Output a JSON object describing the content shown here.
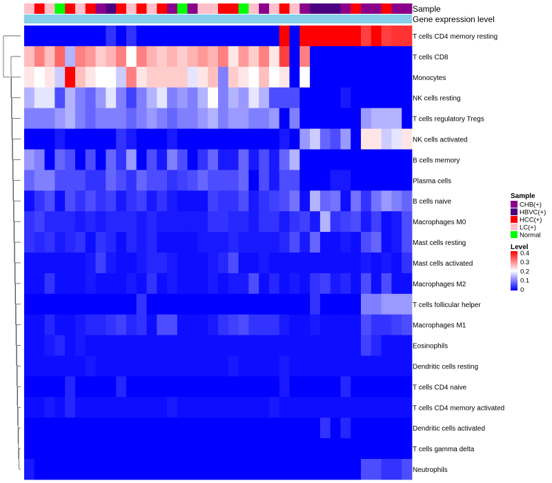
{
  "chart_data": {
    "type": "heatmap",
    "annotation_labels": {
      "sample": "Sample",
      "gene_expression": "Gene expression level"
    },
    "sample_groups": [
      "LC(+)",
      "HCC(+)",
      "LC(+)",
      "Normal",
      "HCC(+)",
      "LC(+)",
      "HCC(+)",
      "CHB(+)",
      "HBVC(+)",
      "HCC(+)",
      "LC(+)",
      "HCC(+)",
      "LC(+)",
      "HCC(+)",
      "CHB(+)",
      "Normal",
      "CHB(+)",
      "LC(+)",
      "LC(+)",
      "HCC(+)",
      "HCC(+)",
      "Normal",
      "LC(+)",
      "CHB(+)",
      "LC(+)",
      "HCC(+)",
      "LC(+)",
      "CHB(+)",
      "HBVC(+)",
      "HBVC(+)",
      "HBVC(+)",
      "CHB(+)",
      "HCC(+)",
      "CHB(+)",
      "CHB(+)",
      "HCC(+)",
      "CHB(+)",
      "CHB(+)"
    ],
    "rows": [
      "T cells CD4 memory resting",
      "T cells CD8",
      "Monocytes",
      "NK cells resting",
      "T cells regulatory  Tregs",
      "NK cells activated",
      "B cells memory",
      "Plasma cells",
      "B cells naive",
      "Macrophages M0",
      "Mast cells resting",
      "Mast cells activated",
      "Macrophages M2",
      "T cells follicular helper",
      "Macrophages M1",
      "Eosinophils",
      "Dendritic cells resting",
      "T cells CD4 naive",
      "T cells CD4 memory activated",
      "Dendritic cells activated",
      "T cells gamma delta",
      "Neutrophils"
    ],
    "values": [
      [
        0,
        0,
        0,
        0,
        0,
        0,
        0,
        0,
        0.04,
        0,
        0.04,
        0,
        0,
        0,
        0,
        0,
        0,
        0,
        0,
        0,
        0,
        0,
        0,
        0,
        0,
        0.4,
        0,
        0.4,
        0.4,
        0.4,
        0.4,
        0.4,
        0.4,
        0.35,
        0.4,
        0.35,
        0.36,
        0.36
      ],
      [
        0.25,
        0.3,
        0.25,
        0.32,
        0.14,
        0.3,
        0.28,
        0.24,
        0.26,
        0.3,
        0.2,
        0.3,
        0.26,
        0.24,
        0.26,
        0.24,
        0.26,
        0.28,
        0.26,
        0.3,
        0.22,
        0.28,
        0.24,
        0.3,
        0.22,
        0.35,
        0,
        0.3,
        0,
        0,
        0,
        0,
        0,
        0,
        0,
        0,
        0,
        0
      ],
      [
        0.22,
        0.2,
        0.22,
        0.16,
        0.4,
        0.25,
        0.22,
        0.2,
        0.2,
        0.16,
        0.3,
        0.22,
        0.24,
        0.24,
        0.24,
        0.24,
        0.18,
        0.22,
        0.25,
        0.1,
        0.24,
        0.22,
        0.2,
        0.25,
        0.2,
        0.22,
        0,
        0.2,
        0,
        0,
        0,
        0,
        0,
        0,
        0,
        0,
        0,
        0
      ],
      [
        0.14,
        0.18,
        0.18,
        0.06,
        0.14,
        0.1,
        0.08,
        0.12,
        0.18,
        0.1,
        0.05,
        0.1,
        0.14,
        0.18,
        0.1,
        0.12,
        0.1,
        0.14,
        0.2,
        0.1,
        0.14,
        0.12,
        0.18,
        0.14,
        0.06,
        0.06,
        0.06,
        0,
        0,
        0,
        0,
        0.02,
        0,
        0,
        0,
        0,
        0,
        0
      ],
      [
        0.1,
        0.1,
        0.1,
        0.12,
        0.14,
        0.1,
        0.08,
        0.1,
        0.1,
        0.1,
        0.08,
        0.1,
        0.12,
        0.1,
        0.08,
        0.1,
        0.1,
        0.12,
        0.14,
        0.1,
        0.12,
        0.12,
        0.1,
        0.1,
        0.12,
        0,
        0.1,
        0,
        0,
        0,
        0,
        0,
        0,
        0.12,
        0.14,
        0.14,
        0.14,
        0
      ],
      [
        0,
        0,
        0,
        0.02,
        0,
        0,
        0,
        0,
        0,
        0.04,
        0.02,
        0,
        0,
        0,
        0.02,
        0,
        0,
        0,
        0,
        0,
        0,
        0,
        0,
        0,
        0,
        0.02,
        0,
        0.12,
        0.16,
        0.08,
        0.06,
        0.12,
        0,
        0.22,
        0.22,
        0.16,
        0.18,
        0.22
      ],
      [
        0.12,
        0.1,
        0,
        0.08,
        0.06,
        0,
        0.06,
        0,
        0.08,
        0.04,
        0.12,
        0,
        0.06,
        0.02,
        0.1,
        0.06,
        0,
        0.04,
        0.08,
        0.02,
        0.02,
        0.08,
        0.02,
        0.06,
        0.02,
        0.08,
        0.14,
        0,
        0,
        0,
        0,
        0,
        0,
        0,
        0,
        0,
        0,
        0
      ],
      [
        0.08,
        0.1,
        0.1,
        0.06,
        0.06,
        0.06,
        0.04,
        0.04,
        0.08,
        0.06,
        0.04,
        0.08,
        0.06,
        0.06,
        0.04,
        0.05,
        0.06,
        0.08,
        0.06,
        0.06,
        0.06,
        0.08,
        0,
        0.06,
        0.02,
        0.06,
        0.06,
        0,
        0,
        0,
        0.02,
        0.02,
        0,
        0,
        0,
        0,
        0,
        0
      ],
      [
        0.01,
        0.04,
        0.06,
        0.01,
        0.06,
        0.04,
        0.06,
        0.04,
        0.05,
        0.02,
        0.04,
        0.05,
        0.02,
        0.04,
        0.02,
        0.01,
        0.01,
        0.01,
        0.05,
        0.04,
        0.04,
        0.06,
        0.02,
        0.04,
        0.05,
        0.06,
        0.09,
        0.01,
        0.14,
        0.08,
        0.09,
        0.01,
        0.09,
        0.04,
        0.09,
        0.12,
        0.1,
        0.08
      ],
      [
        0.04,
        0.05,
        0.03,
        0.03,
        0.03,
        0.02,
        0.03,
        0.02,
        0.03,
        0.03,
        0.03,
        0.02,
        0.03,
        0.02,
        0.02,
        0.02,
        0.02,
        0.02,
        0.04,
        0.04,
        0.03,
        0.03,
        0.02,
        0.04,
        0.04,
        0.02,
        0.04,
        0.05,
        0.02,
        0.14,
        0.04,
        0.05,
        0.06,
        0.02,
        0.05,
        0.01,
        0.02,
        0.06
      ],
      [
        0.04,
        0.03,
        0.04,
        0.02,
        0.03,
        0.04,
        0.01,
        0.04,
        0.03,
        0.01,
        0.03,
        0.02,
        0.03,
        0.01,
        0.01,
        0.01,
        0.01,
        0.02,
        0.02,
        0.02,
        0.03,
        0.02,
        0.02,
        0.02,
        0.02,
        0.03,
        0.06,
        0.02,
        0.08,
        0.01,
        0.01,
        0.02,
        0.01,
        0.06,
        0.08,
        0.01,
        0.02,
        0.06
      ],
      [
        0.01,
        0.01,
        0.01,
        0.01,
        0.01,
        0.01,
        0.02,
        0.05,
        0.02,
        0.01,
        0.01,
        0.02,
        0.03,
        0.03,
        0.02,
        0.01,
        0.01,
        0.01,
        0.02,
        0.03,
        0.06,
        0.01,
        0.01,
        0.02,
        0.01,
        0.01,
        0.01,
        0.01,
        0.01,
        0.01,
        0.01,
        0.01,
        0.01,
        0.02,
        0.01,
        0.02,
        0.01,
        0.04
      ],
      [
        0.01,
        0.01,
        0.04,
        0.01,
        0.01,
        0.01,
        0.02,
        0.01,
        0.01,
        0.01,
        0.02,
        0.01,
        0.04,
        0.01,
        0.02,
        0.01,
        0.01,
        0.01,
        0.02,
        0.01,
        0.02,
        0.02,
        0.06,
        0.01,
        0.03,
        0.01,
        0.02,
        0.01,
        0.04,
        0.05,
        0.02,
        0.03,
        0.01,
        0.06,
        0.01,
        0.06,
        0.01,
        0.01
      ],
      [
        0,
        0,
        0,
        0,
        0,
        0,
        0,
        0,
        0,
        0,
        0,
        0.04,
        0,
        0,
        0,
        0,
        0,
        0,
        0,
        0,
        0,
        0,
        0,
        0,
        0,
        0,
        0,
        0,
        0.04,
        0,
        0,
        0,
        0,
        0.1,
        0.1,
        0.12,
        0.12,
        0.12
      ],
      [
        0.01,
        0.01,
        0.03,
        0.01,
        0.01,
        0.02,
        0.03,
        0.03,
        0.04,
        0.05,
        0.03,
        0.04,
        0.01,
        0.06,
        0.06,
        0.01,
        0.01,
        0.01,
        0.02,
        0.04,
        0.05,
        0.06,
        0.04,
        0.04,
        0.04,
        0.02,
        0.01,
        0.01,
        0.02,
        0.01,
        0.01,
        0.01,
        0.01,
        0.06,
        0.04,
        0.04,
        0.05,
        0.06
      ],
      [
        0.01,
        0.01,
        0.02,
        0.03,
        0.01,
        0.02,
        0.01,
        0.01,
        0.01,
        0.01,
        0.01,
        0.01,
        0.01,
        0.01,
        0.01,
        0.01,
        0.01,
        0.01,
        0.01,
        0.01,
        0.01,
        0.01,
        0.01,
        0.01,
        0.01,
        0.01,
        0.01,
        0.01,
        0.01,
        0.01,
        0.01,
        0.01,
        0.01,
        0.05,
        0.03,
        0.01,
        0.01,
        0.01
      ],
      [
        0.01,
        0.01,
        0.01,
        0.01,
        0.01,
        0.01,
        0.02,
        0.01,
        0.01,
        0.01,
        0.01,
        0.01,
        0.01,
        0.01,
        0.01,
        0.01,
        0.01,
        0.01,
        0.01,
        0.01,
        0.02,
        0.01,
        0.01,
        0.01,
        0.01,
        0.02,
        0.01,
        0.01,
        0.01,
        0.01,
        0.01,
        0.01,
        0.01,
        0.01,
        0.01,
        0.01,
        0.01,
        0.01
      ],
      [
        0,
        0,
        0,
        0,
        0.03,
        0,
        0,
        0,
        0,
        0.03,
        0,
        0,
        0,
        0,
        0,
        0,
        0,
        0,
        0,
        0,
        0,
        0,
        0,
        0,
        0,
        0.02,
        0,
        0,
        0,
        0,
        0,
        0.03,
        0,
        0,
        0,
        0,
        0,
        0
      ],
      [
        0.01,
        0.01,
        0.02,
        0.01,
        0.03,
        0.01,
        0.01,
        0.01,
        0.01,
        0.01,
        0.01,
        0.01,
        0.01,
        0.01,
        0.02,
        0.01,
        0.01,
        0.01,
        0.01,
        0.01,
        0.01,
        0.01,
        0.01,
        0.01,
        0.02,
        0.01,
        0.01,
        0.01,
        0.01,
        0.01,
        0.01,
        0.01,
        0.01,
        0.01,
        0.01,
        0.01,
        0.01,
        0.01
      ],
      [
        0,
        0,
        0,
        0,
        0,
        0,
        0,
        0,
        0,
        0,
        0,
        0,
        0,
        0,
        0,
        0,
        0,
        0,
        0,
        0,
        0,
        0,
        0,
        0,
        0,
        0,
        0,
        0,
        0,
        0.04,
        0,
        0.03,
        0,
        0,
        0,
        0,
        0,
        0
      ],
      [
        0,
        0,
        0,
        0,
        0,
        0,
        0,
        0,
        0,
        0,
        0,
        0,
        0,
        0,
        0,
        0,
        0,
        0,
        0,
        0,
        0,
        0,
        0,
        0,
        0,
        0,
        0,
        0,
        0,
        0,
        0,
        0,
        0,
        0,
        0,
        0,
        0,
        0
      ],
      [
        0.02,
        0,
        0,
        0,
        0,
        0,
        0,
        0,
        0,
        0,
        0,
        0,
        0,
        0,
        0,
        0,
        0,
        0,
        0,
        0,
        0,
        0,
        0,
        0,
        0,
        0,
        0,
        0,
        0,
        0,
        0,
        0,
        0,
        0.06,
        0.06,
        0.04,
        0.04,
        0.06
      ]
    ],
    "color_scale": {
      "min": 0,
      "max": 0.4,
      "colors": [
        "#0000ff",
        "#ffffff",
        "#ff0000"
      ]
    },
    "legend_sample": {
      "title": "Sample",
      "items": [
        {
          "label": "CHB(+)",
          "color": "#8b008b"
        },
        {
          "label": "HBVC(+)",
          "color": "#4b0082"
        },
        {
          "label": "HCC(+)",
          "color": "#ff0000"
        },
        {
          "label": "LC(+)",
          "color": "#ffc0cb"
        },
        {
          "label": "Normal",
          "color": "#00ff00"
        }
      ]
    },
    "legend_level": {
      "title": "Level",
      "ticks": [
        "0.4",
        "0.3",
        "0.2",
        "0.1",
        "0"
      ]
    },
    "gene_expression_color": "#87ceeb"
  }
}
